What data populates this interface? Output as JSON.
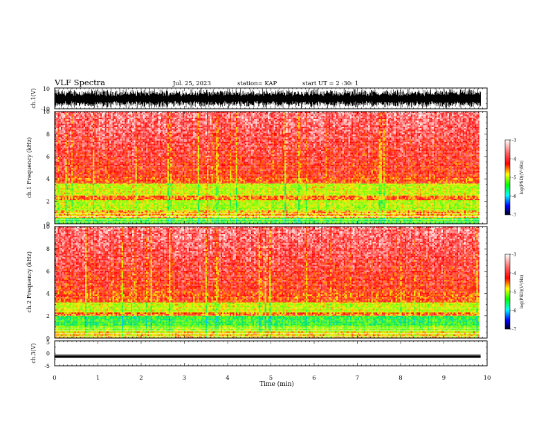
{
  "header": {
    "title": "VLF Spectra",
    "date": "Jul. 25, 2023",
    "station": "station= KAP",
    "start": "start  UT =  2 :30: 1"
  },
  "colorbar": {
    "label": "log(PSD)(V²/Hz)",
    "min": -7,
    "max": -3,
    "ticks": [
      "-3",
      "-4",
      "-5",
      "-6",
      "-7"
    ],
    "colors": [
      "#ffffff",
      "#ff0000",
      "#ffff00",
      "#00ff00",
      "#00ffff",
      "#0000ff",
      "#000000"
    ]
  },
  "chart_data": [
    {
      "type": "line",
      "panel": "ch1-waveform",
      "ylabel": "ch.1(V)",
      "ylim": [
        -10,
        10
      ],
      "yticks": [
        "10",
        "-10"
      ],
      "xlim": [
        0,
        10
      ],
      "data_extent_min": 9.85,
      "description_values": {
        "baseline_V": 0,
        "envelope_V": [
          -10,
          10
        ]
      }
    },
    {
      "type": "heatmap",
      "panel": "ch1-spectrogram",
      "ylabel": "ch.1\nFrequency (kHz)",
      "ylim": [
        0,
        10
      ],
      "yticks": [
        "0",
        "2",
        "4",
        "6",
        "8",
        "10"
      ],
      "xlim": [
        0,
        10
      ],
      "data_extent_min": 9.85,
      "bands_kHz": [
        {
          "from": 0,
          "to": 0.5,
          "level": -5.0
        },
        {
          "from": 0.5,
          "to": 1.2,
          "level": -4.2
        },
        {
          "from": 1.2,
          "to": 2.1,
          "level": -4.6
        },
        {
          "from": 2.1,
          "to": 2.5,
          "level": -4.0
        },
        {
          "from": 2.5,
          "to": 3.6,
          "level": -4.5
        },
        {
          "from": 3.6,
          "to": 4.2,
          "level": -3.9
        },
        {
          "from": 4.2,
          "to": 10,
          "level": -3.4
        }
      ]
    },
    {
      "type": "heatmap",
      "panel": "ch2-spectrogram",
      "ylabel": "ch.2\nFrequency (kHz)",
      "ylim": [
        0,
        10
      ],
      "yticks": [
        "0",
        "2",
        "4",
        "6",
        "8",
        "10"
      ],
      "xlim": [
        0,
        10
      ],
      "data_extent_min": 9.85,
      "bands_kHz": [
        {
          "from": 0,
          "to": 0.6,
          "level": -4.3
        },
        {
          "from": 0.6,
          "to": 1.1,
          "level": -4.7
        },
        {
          "from": 1.1,
          "to": 2.0,
          "level": -5.1
        },
        {
          "from": 2.0,
          "to": 2.3,
          "level": -4.0
        },
        {
          "from": 2.3,
          "to": 3.2,
          "level": -4.5
        },
        {
          "from": 3.2,
          "to": 4.2,
          "level": -3.9
        },
        {
          "from": 4.2,
          "to": 10,
          "level": -3.4
        }
      ]
    },
    {
      "type": "line",
      "panel": "ch3-waveform",
      "ylabel": "ch.3(V)",
      "ylim": [
        -5,
        5
      ],
      "yticks": [
        "5",
        "0",
        "-5"
      ],
      "xlim": [
        0,
        10
      ],
      "data_extent_min": 9.85,
      "description_values": {
        "center_V": -1.3,
        "envelope_V": [
          -1.8,
          -0.8
        ]
      }
    }
  ],
  "xaxis": {
    "label": "Time (min)",
    "ticks": [
      "0",
      "1",
      "2",
      "3",
      "4",
      "5",
      "6",
      "7",
      "8",
      "9",
      "10"
    ]
  }
}
